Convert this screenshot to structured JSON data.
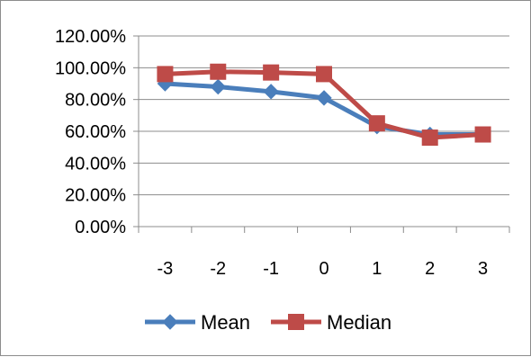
{
  "chart_data": {
    "type": "line",
    "title": "",
    "xlabel": "",
    "ylabel": "",
    "categories": [
      "-3",
      "-2",
      "-1",
      "0",
      "1",
      "2",
      "3"
    ],
    "y_ticks": [
      "0.00%",
      "20.00%",
      "40.00%",
      "60.00%",
      "80.00%",
      "100.00%",
      "120.00%"
    ],
    "ylim": [
      0,
      120
    ],
    "grid": true,
    "legend_position": "bottom",
    "series": [
      {
        "name": "Mean",
        "color": "#4a7ebb",
        "marker": "diamond",
        "values": [
          90,
          88,
          85,
          81,
          63,
          58,
          58
        ]
      },
      {
        "name": "Median",
        "color": "#be4b48",
        "marker": "square",
        "values": [
          96,
          97.5,
          97,
          96,
          65,
          56,
          58
        ]
      }
    ]
  }
}
